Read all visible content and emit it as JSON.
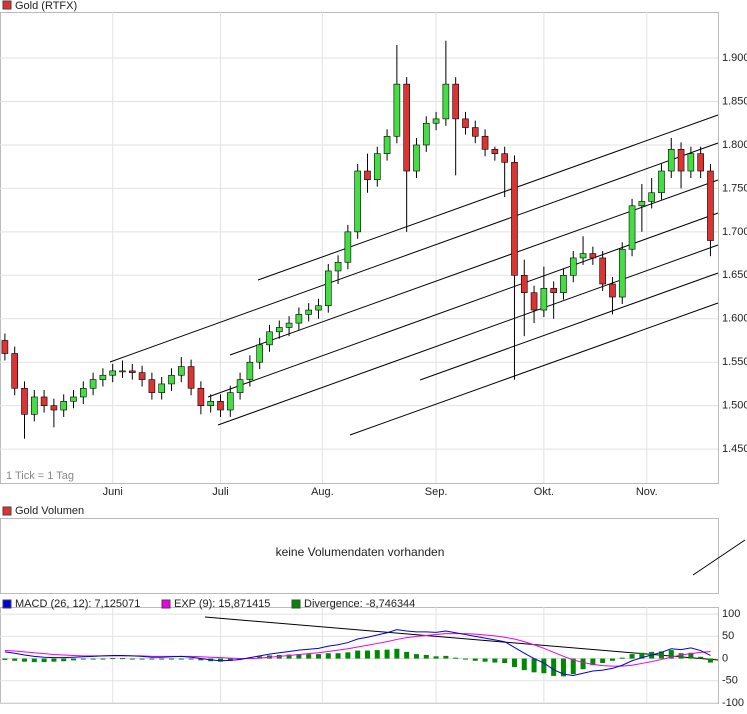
{
  "chart_data": [
    {
      "type": "candlestick",
      "title": "Gold (RTFX)",
      "note": "1 Tick = 1 Tag",
      "up_color": "#44dd44",
      "down_color": "#dd3333",
      "grid": true,
      "ylim": [
        1411,
        1953
      ],
      "yticks": [
        {
          "value": 1450,
          "label": "1.450"
        },
        {
          "value": 1500,
          "label": "1.500"
        },
        {
          "value": 1550,
          "label": "1.550"
        },
        {
          "value": 1600,
          "label": "1.600"
        },
        {
          "value": 1650,
          "label": "1.650"
        },
        {
          "value": 1700,
          "label": "1.700"
        },
        {
          "value": 1750,
          "label": "1.750"
        },
        {
          "value": 1800,
          "label": "1.800"
        },
        {
          "value": 1850,
          "label": "1.850"
        },
        {
          "value": 1900,
          "label": "1.900"
        }
      ],
      "xlim": [
        -0.5,
        72.77
      ],
      "xticks": [
        {
          "value": 11,
          "label": "Juni"
        },
        {
          "value": 22,
          "label": "Juli"
        },
        {
          "value": 32.4,
          "label": "Aug."
        },
        {
          "value": 44,
          "label": "Sep."
        },
        {
          "value": 55,
          "label": "Okt."
        },
        {
          "value": 65.5,
          "label": "Nov."
        }
      ],
      "ohlc": [
        [
          1575,
          1583,
          1552,
          1560
        ],
        [
          1560,
          1568,
          1512,
          1520
        ],
        [
          1520,
          1528,
          1462,
          1490
        ],
        [
          1490,
          1518,
          1482,
          1510
        ],
        [
          1510,
          1518,
          1492,
          1500
        ],
        [
          1500,
          1508,
          1475,
          1495
        ],
        [
          1495,
          1513,
          1487,
          1505
        ],
        [
          1505,
          1518,
          1497,
          1510
        ],
        [
          1510,
          1528,
          1502,
          1520
        ],
        [
          1520,
          1538,
          1512,
          1530
        ],
        [
          1530,
          1543,
          1522,
          1535
        ],
        [
          1535,
          1548,
          1527,
          1540
        ],
        [
          1540,
          1552,
          1532,
          1540
        ],
        [
          1540,
          1548,
          1530,
          1538
        ],
        [
          1538,
          1546,
          1522,
          1530
        ],
        [
          1530,
          1538,
          1507,
          1515
        ],
        [
          1515,
          1533,
          1507,
          1525
        ],
        [
          1525,
          1543,
          1517,
          1535
        ],
        [
          1535,
          1556,
          1527,
          1545
        ],
        [
          1545,
          1553,
          1512,
          1520
        ],
        [
          1520,
          1528,
          1490,
          1500
        ],
        [
          1500,
          1513,
          1492,
          1505
        ],
        [
          1505,
          1513,
          1487,
          1495
        ],
        [
          1495,
          1523,
          1487,
          1515
        ],
        [
          1515,
          1538,
          1507,
          1530
        ],
        [
          1530,
          1558,
          1522,
          1550
        ],
        [
          1550,
          1578,
          1542,
          1570
        ],
        [
          1570,
          1593,
          1562,
          1585
        ],
        [
          1585,
          1598,
          1577,
          1590
        ],
        [
          1590,
          1603,
          1580,
          1595
        ],
        [
          1595,
          1613,
          1587,
          1605
        ],
        [
          1605,
          1618,
          1597,
          1610
        ],
        [
          1610,
          1623,
          1600,
          1615
        ],
        [
          1615,
          1663,
          1607,
          1655
        ],
        [
          1655,
          1673,
          1640,
          1665
        ],
        [
          1665,
          1708,
          1657,
          1700
        ],
        [
          1700,
          1778,
          1692,
          1770
        ],
        [
          1770,
          1790,
          1745,
          1760
        ],
        [
          1760,
          1798,
          1752,
          1790
        ],
        [
          1790,
          1818,
          1782,
          1810
        ],
        [
          1810,
          1915,
          1802,
          1870
        ],
        [
          1870,
          1878,
          1700,
          1770
        ],
        [
          1770,
          1808,
          1762,
          1800
        ],
        [
          1800,
          1833,
          1792,
          1825
        ],
        [
          1825,
          1838,
          1817,
          1830
        ],
        [
          1830,
          1920,
          1822,
          1870
        ],
        [
          1870,
          1878,
          1765,
          1830
        ],
        [
          1830,
          1838,
          1812,
          1820
        ],
        [
          1820,
          1828,
          1802,
          1810
        ],
        [
          1810,
          1818,
          1787,
          1795
        ],
        [
          1795,
          1798,
          1782,
          1790
        ],
        [
          1790,
          1798,
          1740,
          1780
        ],
        [
          1780,
          1788,
          1530,
          1650
        ],
        [
          1650,
          1668,
          1580,
          1630
        ],
        [
          1630,
          1638,
          1595,
          1610
        ],
        [
          1610,
          1660,
          1602,
          1635
        ],
        [
          1635,
          1643,
          1600,
          1630
        ],
        [
          1630,
          1658,
          1622,
          1650
        ],
        [
          1650,
          1678,
          1642,
          1670
        ],
        [
          1670,
          1695,
          1662,
          1675
        ],
        [
          1675,
          1683,
          1662,
          1670
        ],
        [
          1670,
          1678,
          1632,
          1640
        ],
        [
          1640,
          1648,
          1605,
          1625
        ],
        [
          1625,
          1688,
          1617,
          1680
        ],
        [
          1680,
          1738,
          1672,
          1730
        ],
        [
          1730,
          1755,
          1700,
          1735
        ],
        [
          1735,
          1762,
          1727,
          1745
        ],
        [
          1745,
          1778,
          1737,
          1770
        ],
        [
          1770,
          1808,
          1762,
          1795
        ],
        [
          1795,
          1803,
          1750,
          1770
        ],
        [
          1770,
          1798,
          1762,
          1790
        ],
        [
          1790,
          1798,
          1762,
          1770
        ],
        [
          1770,
          1778,
          1672,
          1690
        ]
      ]
    },
    {
      "type": "bar",
      "title": "Gold Volumen",
      "message": "keine Volumendaten vorhanden"
    },
    {
      "type": "macd",
      "ylim": [
        -100,
        116
      ],
      "yticks": [
        100,
        50,
        0,
        -50,
        -100
      ],
      "xlim": [
        -0.5,
        72.77
      ],
      "series": [
        {
          "name": "MACD (26, 12): 7,125071",
          "color": "#0000dd",
          "values": [
            15,
            12,
            8,
            5,
            3,
            2,
            2,
            3,
            4,
            5,
            6,
            7,
            7,
            6,
            5,
            3,
            3,
            4,
            5,
            3,
            0,
            -3,
            -5,
            -4,
            -2,
            2,
            6,
            10,
            13,
            16,
            19,
            21,
            23,
            28,
            31,
            36,
            44,
            48,
            53,
            58,
            65,
            62,
            60,
            60,
            59,
            62,
            58,
            54,
            50,
            46,
            42,
            38,
            25,
            12,
            0,
            -10,
            -25,
            -35,
            -38,
            -33,
            -28,
            -26,
            -22,
            -15,
            -5,
            2,
            8,
            14,
            22,
            20,
            24,
            18,
            7
          ]
        },
        {
          "name": "EXP (9): 15,871415",
          "color": "#ee00ee",
          "values": [
            18,
            17,
            15,
            13,
            11,
            9,
            8,
            7,
            6,
            6,
            6,
            6,
            6,
            6,
            6,
            5,
            5,
            5,
            5,
            5,
            4,
            3,
            2,
            1,
            0,
            0,
            1,
            3,
            5,
            7,
            9,
            11,
            13,
            16,
            19,
            22,
            26,
            30,
            34,
            38,
            43,
            47,
            50,
            52,
            54,
            56,
            56,
            56,
            55,
            53,
            51,
            48,
            44,
            38,
            31,
            23,
            14,
            5,
            -3,
            -9,
            -13,
            -16,
            -17,
            -17,
            -15,
            -11,
            -7,
            -2,
            3,
            8,
            11,
            14,
            16
          ]
        },
        {
          "name": "Divergence: -8,746344",
          "color": "#008800",
          "values": [
            -3,
            -5,
            -7,
            -8,
            -8,
            -7,
            -6,
            -4,
            -2,
            -1,
            0,
            1,
            1,
            0,
            -1,
            -2,
            -2,
            -1,
            0,
            -2,
            -4,
            -6,
            -7,
            -5,
            -2,
            2,
            5,
            7,
            8,
            9,
            10,
            10,
            10,
            12,
            12,
            14,
            18,
            18,
            19,
            20,
            22,
            15,
            10,
            8,
            5,
            6,
            2,
            -2,
            -5,
            -7,
            -9,
            -10,
            -19,
            -26,
            -31,
            -33,
            -39,
            -40,
            -35,
            -24,
            -15,
            -10,
            -5,
            2,
            10,
            13,
            15,
            16,
            19,
            12,
            13,
            4,
            -9
          ]
        }
      ]
    }
  ]
}
